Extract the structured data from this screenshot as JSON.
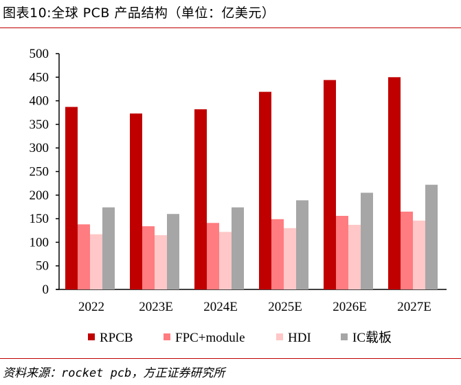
{
  "title": "图表10:全球 PCB 产品结构（单位：亿美元）",
  "source": "资料来源：rocket pcb，方正证券研究所",
  "chart_data": {
    "type": "bar",
    "categories": [
      "2022",
      "2023E",
      "2024E",
      "2025E",
      "2026E",
      "2027E"
    ],
    "series": [
      {
        "name": "RPCB",
        "color": "#c00000",
        "values": [
          387,
          373,
          382,
          419,
          444,
          450
        ]
      },
      {
        "name": "FPC+module",
        "color": "#ff7c80",
        "values": [
          138,
          134,
          141,
          149,
          156,
          165
        ]
      },
      {
        "name": "HDI",
        "color": "#ffc7c7",
        "values": [
          117,
          115,
          122,
          130,
          137,
          146
        ]
      },
      {
        "name": "IC载板",
        "color": "#a6a6a6",
        "values": [
          174,
          160,
          174,
          189,
          205,
          222
        ]
      }
    ],
    "ylim": [
      0,
      500
    ],
    "yticks": [
      "0",
      "50",
      "100",
      "150",
      "200",
      "250",
      "300",
      "350",
      "400",
      "450",
      "500"
    ],
    "grid": false,
    "legend": "bottom"
  }
}
